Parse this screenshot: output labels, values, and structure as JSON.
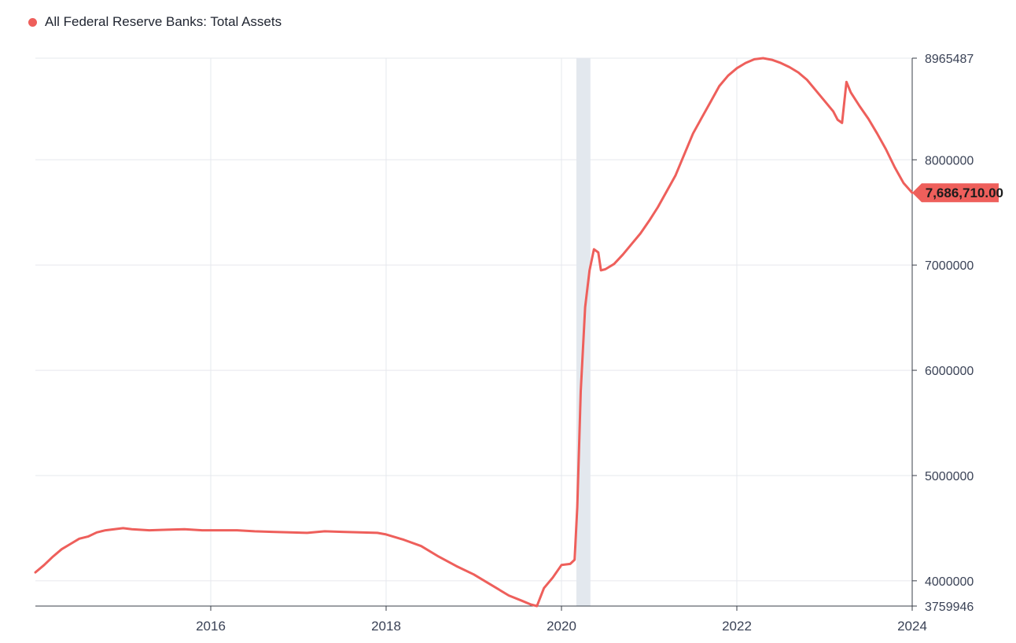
{
  "legend": {
    "label": "All Federal Reserve Banks: Total Assets",
    "color": "#ee5f5b"
  },
  "chart_data": {
    "type": "line",
    "title": "",
    "xlabel": "",
    "ylabel": "",
    "xlim": [
      2014.0,
      2024.0
    ],
    "ylim": [
      3759946,
      8965487
    ],
    "grid": true,
    "legend_position": "top-left",
    "y_axis_side": "right",
    "y_ticks": [
      "8965487",
      "8000000",
      "7000000",
      "6000000",
      "5000000",
      "4000000",
      "3759946"
    ],
    "y_tick_values": [
      8965487,
      8000000,
      7000000,
      6000000,
      5000000,
      4000000,
      3759946
    ],
    "x_ticks": [
      "2016",
      "2018",
      "2020",
      "2022",
      "2024"
    ],
    "x_tick_values": [
      2016,
      2018,
      2020,
      2022,
      2024
    ],
    "recession_band": [
      2020.17,
      2020.33
    ],
    "last_value_label": "7,686,710.00",
    "series": [
      {
        "name": "All Federal Reserve Banks: Total Assets",
        "color": "#ee5f5b",
        "x": [
          2014.0,
          2014.1,
          2014.2,
          2014.3,
          2014.4,
          2014.5,
          2014.6,
          2014.7,
          2014.8,
          2014.9,
          2015.0,
          2015.1,
          2015.3,
          2015.5,
          2015.7,
          2015.9,
          2016.1,
          2016.3,
          2016.5,
          2016.7,
          2016.9,
          2017.1,
          2017.3,
          2017.5,
          2017.7,
          2017.9,
          2018.0,
          2018.2,
          2018.4,
          2018.6,
          2018.8,
          2019.0,
          2019.2,
          2019.4,
          2019.55,
          2019.65,
          2019.72,
          2019.8,
          2019.9,
          2020.0,
          2020.1,
          2020.15,
          2020.18,
          2020.22,
          2020.27,
          2020.32,
          2020.37,
          2020.42,
          2020.45,
          2020.5,
          2020.6,
          2020.7,
          2020.8,
          2020.9,
          2021.0,
          2021.1,
          2021.2,
          2021.3,
          2021.4,
          2021.5,
          2021.6,
          2021.7,
          2021.8,
          2021.9,
          2022.0,
          2022.1,
          2022.2,
          2022.3,
          2022.4,
          2022.5,
          2022.6,
          2022.7,
          2022.8,
          2022.9,
          2023.0,
          2023.1,
          2023.15,
          2023.2,
          2023.25,
          2023.3,
          2023.4,
          2023.5,
          2023.6,
          2023.7,
          2023.8,
          2023.9,
          2024.0
        ],
        "values": [
          4080000,
          4150000,
          4230000,
          4300000,
          4350000,
          4400000,
          4420000,
          4460000,
          4480000,
          4490000,
          4500000,
          4490000,
          4480000,
          4485000,
          4490000,
          4480000,
          4480000,
          4480000,
          4470000,
          4465000,
          4460000,
          4455000,
          4470000,
          4465000,
          4460000,
          4455000,
          4440000,
          4390000,
          4330000,
          4230000,
          4140000,
          4060000,
          3960000,
          3860000,
          3810000,
          3775000,
          3760000,
          3930000,
          4030000,
          4150000,
          4160000,
          4200000,
          4700000,
          5800000,
          6600000,
          6950000,
          7150000,
          7120000,
          6950000,
          6960000,
          7010000,
          7100000,
          7200000,
          7300000,
          7420000,
          7550000,
          7700000,
          7850000,
          8050000,
          8250000,
          8400000,
          8550000,
          8700000,
          8800000,
          8870000,
          8920000,
          8955000,
          8965487,
          8950000,
          8920000,
          8880000,
          8830000,
          8760000,
          8660000,
          8560000,
          8460000,
          8380000,
          8350000,
          8740000,
          8640000,
          8510000,
          8390000,
          8250000,
          8100000,
          7930000,
          7780000,
          7686710
        ]
      }
    ]
  }
}
